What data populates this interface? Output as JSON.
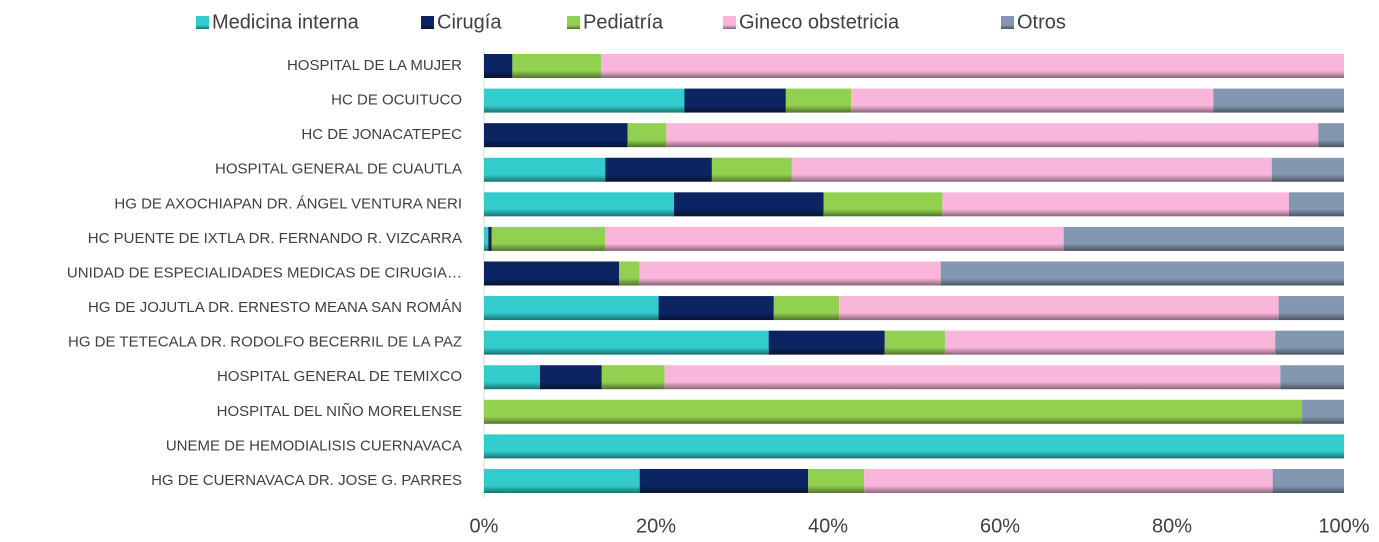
{
  "chart_data": {
    "type": "stacked_barh",
    "categories": [
      "HOSPITAL DE LA MUJER",
      "HC DE OCUITUCO",
      "HC DE JONACATEPEC",
      "HOSPITAL GENERAL DE CUAUTLA",
      "HG DE AXOCHIAPAN DR. ÁNGEL VENTURA NERI",
      "HC PUENTE DE IXTLA DR. FERNANDO R. VIZCARRA",
      "UNIDAD DE ESPECIALIDADES MEDICAS DE CIRUGIA…",
      "HG DE JOJUTLA DR. ERNESTO MEANA SAN ROMÁN",
      "HG DE TETECALA DR. RODOLFO BECERRIL DE LA PAZ",
      "HOSPITAL GENERAL DE TEMIXCO",
      "HOSPITAL DEL NIÑO MORELENSE",
      "UNEME DE HEMODIALISIS CUERNAVACA",
      "HG DE CUERNAVACA DR. JOSE G. PARRES"
    ],
    "series": [
      {
        "name": "Medicina interna",
        "color": "#33cccc",
        "values": [
          0,
          23.3,
          0,
          14.1,
          22.1,
          0.5,
          0,
          20.3,
          33.1,
          6.5,
          0,
          100,
          18.1
        ]
      },
      {
        "name": "Cirugía",
        "color": "#0c2461",
        "values": [
          3.3,
          11.8,
          16.7,
          12.4,
          17.4,
          0.4,
          15.7,
          13.4,
          13.5,
          7.2,
          0,
          0,
          19.6
        ]
      },
      {
        "name": "Pediatría",
        "color": "#92d050",
        "values": [
          10.3,
          7.6,
          4.5,
          9.3,
          13.8,
          13.2,
          2.4,
          7.6,
          7.0,
          7.3,
          95.1,
          0,
          6.5
        ]
      },
      {
        "name": "Gineco obstetricia",
        "color": "#f9b6da",
        "values": [
          86.4,
          42.1,
          75.8,
          55.8,
          40.3,
          53.3,
          35.0,
          51.1,
          38.4,
          71.6,
          0,
          0,
          47.5
        ]
      },
      {
        "name": "Otros",
        "color": "#8497b0",
        "values": [
          0,
          15.2,
          3.0,
          8.4,
          6.4,
          32.6,
          46.9,
          7.6,
          8.0,
          7.4,
          4.9,
          0,
          8.3
        ]
      }
    ],
    "xlim": [
      0,
      100
    ],
    "xticks": [
      {
        "value": 0,
        "label": "0%"
      },
      {
        "value": 20,
        "label": "20%"
      },
      {
        "value": 40,
        "label": "40%"
      },
      {
        "value": 60,
        "label": "60%"
      },
      {
        "value": 80,
        "label": "80%"
      },
      {
        "value": 100,
        "label": "100%"
      }
    ],
    "legend": "top"
  }
}
